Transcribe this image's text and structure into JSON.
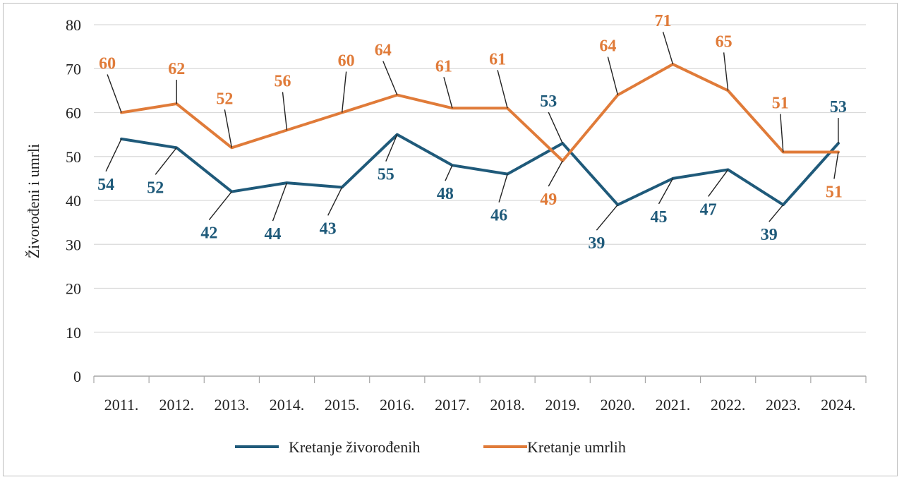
{
  "chart_data": {
    "type": "line",
    "title": "",
    "xlabel": "",
    "ylabel": "Živorođeni i umrli",
    "ylim": [
      0,
      80
    ],
    "yticks": [
      0,
      10,
      20,
      30,
      40,
      50,
      60,
      70,
      80
    ],
    "grid": true,
    "legend_position": "bottom",
    "categories": [
      "2011.",
      "2012.",
      "2013.",
      "2014.",
      "2015.",
      "2016.",
      "2017.",
      "2018.",
      "2019.",
      "2020.",
      "2021.",
      "2022.",
      "2023.",
      "2024."
    ],
    "series": [
      {
        "name": "Kretanje živorođenih",
        "color": "#1f5a7a",
        "values": [
          54,
          52,
          42,
          44,
          43,
          55,
          48,
          46,
          53,
          39,
          45,
          47,
          39,
          53
        ]
      },
      {
        "name": "Kretanje umrlih",
        "color": "#e07b39",
        "values": [
          60,
          62,
          52,
          56,
          60,
          64,
          61,
          61,
          49,
          64,
          71,
          65,
          51,
          51
        ]
      }
    ]
  }
}
